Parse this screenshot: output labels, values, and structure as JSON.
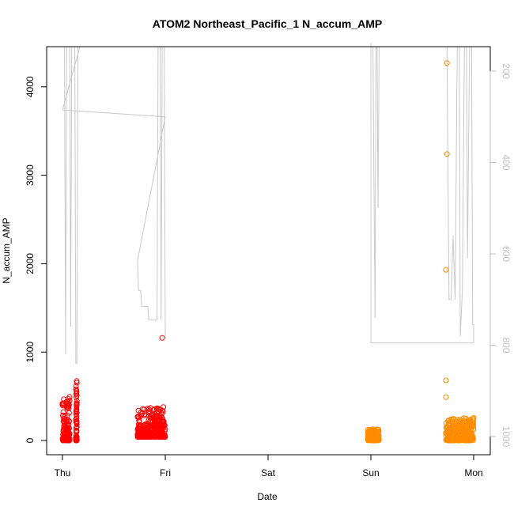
{
  "chart_data": {
    "type": "scatter",
    "title": "ATOM2 Northeast_Pacific_1 N_accum_AMP",
    "xlabel": "Date",
    "ylabel": "N_accum_AMP",
    "x_ticks": [
      "Thu",
      "Fri",
      "Sat",
      "Sun",
      "Mon"
    ],
    "y_ticks": [
      0,
      1000,
      2000,
      3000,
      4000
    ],
    "y_range": [
      -150,
      4450
    ],
    "y2_ticks": [
      200,
      400,
      600,
      800,
      1000
    ],
    "y2_range": [
      1058,
      138
    ],
    "y2_reversed": true,
    "grid": false,
    "colors": {
      "series_red": "#ff0000",
      "series_orange": "#ff8c00",
      "altitude_line": "#c8c8c8",
      "axis": "#000000",
      "y2_axis": "#bfbfbf"
    },
    "series": [
      {
        "color": "red",
        "clusters": [
          {
            "x": [
              0.0,
              0.07
            ],
            "y_range": [
              0,
              500
            ]
          },
          {
            "x": [
              0.13,
              0.14
            ],
            "y_range": [
              0,
              690
            ]
          },
          {
            "x": [
              0.73,
              1.0
            ],
            "y_range": [
              40,
              380
            ]
          }
        ],
        "outliers": [
          {
            "x": 0.97,
            "y": 1160
          }
        ]
      },
      {
        "color": "orange",
        "clusters": [
          {
            "x": [
              2.97,
              3.08
            ],
            "y_range": [
              0,
              130
            ]
          },
          {
            "x": [
              3.73,
              4.0
            ],
            "y_range": [
              0,
              260
            ]
          }
        ],
        "outliers": [
          {
            "x": 3.74,
            "y": 4270
          },
          {
            "x": 3.74,
            "y": 3240
          },
          {
            "x": 3.73,
            "y": 1930
          },
          {
            "x": 3.73,
            "y": 680
          },
          {
            "x": 3.73,
            "y": 490
          }
        ]
      }
    ],
    "altitude_trace": [
      [
        0.0,
        138
      ],
      [
        0.02,
        138
      ],
      [
        0.03,
        820
      ],
      [
        0.04,
        138
      ],
      [
        0.07,
        138
      ],
      [
        0.08,
        760
      ],
      [
        0.09,
        138
      ],
      [
        0.12,
        138
      ],
      [
        0.13,
        840
      ],
      [
        0.14,
        840
      ],
      [
        0.15,
        138
      ],
      [
        0.17,
        138
      ],
      [
        0.0,
        285
      ],
      [
        1.0,
        300
      ],
      [
        0.73,
        615
      ],
      [
        0.74,
        680
      ],
      [
        0.76,
        680
      ],
      [
        0.77,
        715
      ],
      [
        0.83,
        715
      ],
      [
        0.84,
        745
      ],
      [
        0.92,
        745
      ],
      [
        0.93,
        138
      ],
      [
        0.95,
        138
      ],
      [
        0.96,
        745
      ],
      [
        0.97,
        138
      ],
      [
        0.99,
        138
      ],
      [
        1.0,
        785
      ]
    ]
  }
}
